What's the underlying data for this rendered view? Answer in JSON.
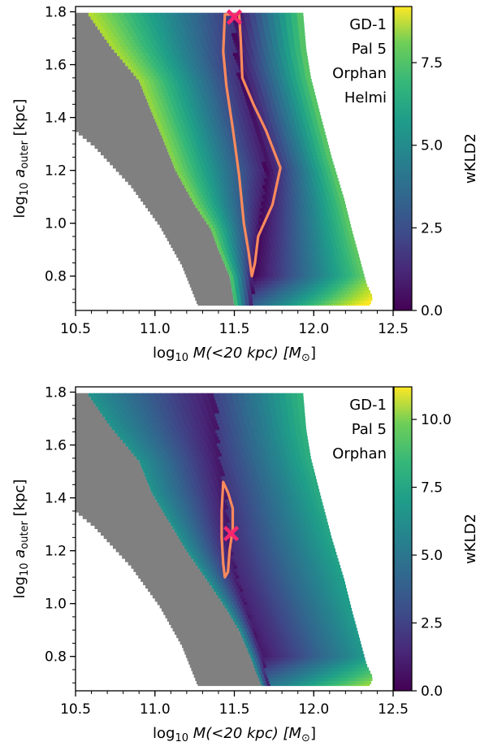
{
  "chart_data": [
    {
      "type": "heatmap",
      "xlabel": {
        "pre": "log",
        "sub": "10",
        "mid": " M(<20 kpc) [M",
        "msub": "⊙",
        "post": "]"
      },
      "ylabel": {
        "pre": "log",
        "sub": "10",
        "mid": " a",
        "msub": "outer",
        "post": " [kpc]"
      },
      "xlim": [
        10.5,
        12.5
      ],
      "ylim": [
        0.67,
        1.82
      ],
      "xticks": [
        "10.5",
        "11.0",
        "11.5",
        "12.0",
        "12.5"
      ],
      "xtick_values": [
        10.5,
        11.0,
        11.5,
        12.0,
        12.5
      ],
      "yticks": [
        "0.8",
        "1.0",
        "1.2",
        "1.4",
        "1.6",
        "1.8"
      ],
      "ytick_values": [
        0.8,
        1.0,
        1.2,
        1.4,
        1.6,
        1.8
      ],
      "streams": [
        "GD-1",
        "Pal 5",
        "Orphan",
        "Helmi"
      ],
      "colorbar": {
        "label": "wKLD2",
        "min": 0.0,
        "max": 9.2,
        "ticks": [
          "0.0",
          "2.5",
          "5.0",
          "7.5"
        ],
        "tick_values": [
          0.0,
          2.5,
          5.0,
          7.5
        ]
      },
      "best_fit": {
        "x": 11.5,
        "y": 1.78
      },
      "contour": [
        [
          11.44,
          1.79
        ],
        [
          11.53,
          1.79
        ],
        [
          11.54,
          1.7
        ],
        [
          11.55,
          1.55
        ],
        [
          11.62,
          1.45
        ],
        [
          11.7,
          1.35
        ],
        [
          11.79,
          1.21
        ],
        [
          11.74,
          1.07
        ],
        [
          11.65,
          0.95
        ],
        [
          11.63,
          0.85
        ],
        [
          11.61,
          0.8
        ],
        [
          11.59,
          0.89
        ],
        [
          11.56,
          1.0
        ],
        [
          11.53,
          1.18
        ],
        [
          11.49,
          1.36
        ],
        [
          11.45,
          1.52
        ],
        [
          11.43,
          1.65
        ],
        [
          11.44,
          1.79
        ]
      ],
      "grey_left_edge": [
        [
          10.5,
          1.8
        ],
        [
          10.5,
          1.35
        ],
        [
          10.62,
          1.29
        ],
        [
          10.85,
          1.14
        ],
        [
          11.03,
          0.99
        ],
        [
          11.17,
          0.84
        ],
        [
          11.27,
          0.69
        ]
      ],
      "color_left_edge": [
        [
          10.57,
          1.8
        ],
        [
          10.72,
          1.67
        ],
        [
          10.9,
          1.54
        ],
        [
          10.98,
          1.42
        ],
        [
          11.05,
          1.32
        ],
        [
          11.13,
          1.2
        ],
        [
          11.25,
          1.07
        ],
        [
          11.35,
          0.98
        ],
        [
          11.4,
          0.9
        ],
        [
          11.47,
          0.8
        ],
        [
          11.5,
          0.69
        ]
      ],
      "color_right_edge": [
        [
          11.93,
          1.8
        ],
        [
          11.95,
          1.66
        ],
        [
          11.98,
          1.55
        ],
        [
          12.04,
          1.41
        ],
        [
          12.11,
          1.25
        ],
        [
          12.19,
          1.09
        ],
        [
          12.24,
          0.97
        ],
        [
          12.29,
          0.86
        ],
        [
          12.33,
          0.77
        ],
        [
          12.37,
          0.72
        ],
        [
          12.35,
          0.69
        ]
      ],
      "valley": [
        [
          11.49,
          1.8
        ],
        [
          11.51,
          1.6
        ],
        [
          11.6,
          1.4
        ],
        [
          11.7,
          1.2
        ],
        [
          11.66,
          1.0
        ],
        [
          11.62,
          0.8
        ],
        [
          11.62,
          0.69
        ]
      ]
    },
    {
      "type": "heatmap",
      "xlabel": {
        "pre": "log",
        "sub": "10",
        "mid": " M(<20 kpc) [M",
        "msub": "⊙",
        "post": "]"
      },
      "ylabel": {
        "pre": "log",
        "sub": "10",
        "mid": " a",
        "msub": "outer",
        "post": " [kpc]"
      },
      "xlim": [
        10.5,
        12.5
      ],
      "ylim": [
        0.67,
        1.82
      ],
      "xticks": [
        "10.5",
        "11.0",
        "11.5",
        "12.0",
        "12.5"
      ],
      "xtick_values": [
        10.5,
        11.0,
        11.5,
        12.0,
        12.5
      ],
      "yticks": [
        "0.8",
        "1.0",
        "1.2",
        "1.4",
        "1.6",
        "1.8"
      ],
      "ytick_values": [
        0.8,
        1.0,
        1.2,
        1.4,
        1.6,
        1.8
      ],
      "streams": [
        "GD-1",
        "Pal 5",
        "Orphan"
      ],
      "colorbar": {
        "label": "wKLD2",
        "min": 0.0,
        "max": 11.2,
        "ticks": [
          "0.0",
          "2.5",
          "5.0",
          "7.5",
          "10.0"
        ],
        "tick_values": [
          0.0,
          2.5,
          5.0,
          7.5,
          10.0
        ]
      },
      "best_fit": {
        "x": 11.48,
        "y": 1.265
      },
      "contour": [
        [
          11.43,
          1.46
        ],
        [
          11.46,
          1.42
        ],
        [
          11.49,
          1.36
        ],
        [
          11.49,
          1.28
        ],
        [
          11.47,
          1.2
        ],
        [
          11.46,
          1.12
        ],
        [
          11.44,
          1.1
        ],
        [
          11.43,
          1.15
        ],
        [
          11.42,
          1.25
        ],
        [
          11.42,
          1.35
        ],
        [
          11.43,
          1.46
        ]
      ],
      "grey_left_edge": [
        [
          10.5,
          1.8
        ],
        [
          10.5,
          1.35
        ],
        [
          10.62,
          1.29
        ],
        [
          10.85,
          1.14
        ],
        [
          11.03,
          0.99
        ],
        [
          11.17,
          0.84
        ],
        [
          11.27,
          0.69
        ]
      ],
      "color_left_edge": [
        [
          10.57,
          1.8
        ],
        [
          10.72,
          1.67
        ],
        [
          10.9,
          1.54
        ],
        [
          10.98,
          1.42
        ],
        [
          11.08,
          1.32
        ],
        [
          11.2,
          1.2
        ],
        [
          11.35,
          1.07
        ],
        [
          11.45,
          0.98
        ],
        [
          11.53,
          0.9
        ],
        [
          11.6,
          0.8
        ],
        [
          11.67,
          0.69
        ]
      ],
      "color_right_edge": [
        [
          11.93,
          1.8
        ],
        [
          11.95,
          1.66
        ],
        [
          11.98,
          1.55
        ],
        [
          12.04,
          1.41
        ],
        [
          12.11,
          1.25
        ],
        [
          12.19,
          1.09
        ],
        [
          12.24,
          0.97
        ],
        [
          12.29,
          0.86
        ],
        [
          12.33,
          0.77
        ],
        [
          12.37,
          0.72
        ],
        [
          12.35,
          0.69
        ]
      ],
      "valley": [
        [
          11.38,
          1.8
        ],
        [
          11.4,
          1.6
        ],
        [
          11.45,
          1.4
        ],
        [
          11.47,
          1.25
        ],
        [
          11.52,
          1.1
        ],
        [
          11.6,
          0.95
        ],
        [
          11.68,
          0.8
        ],
        [
          11.72,
          0.69
        ]
      ]
    }
  ]
}
